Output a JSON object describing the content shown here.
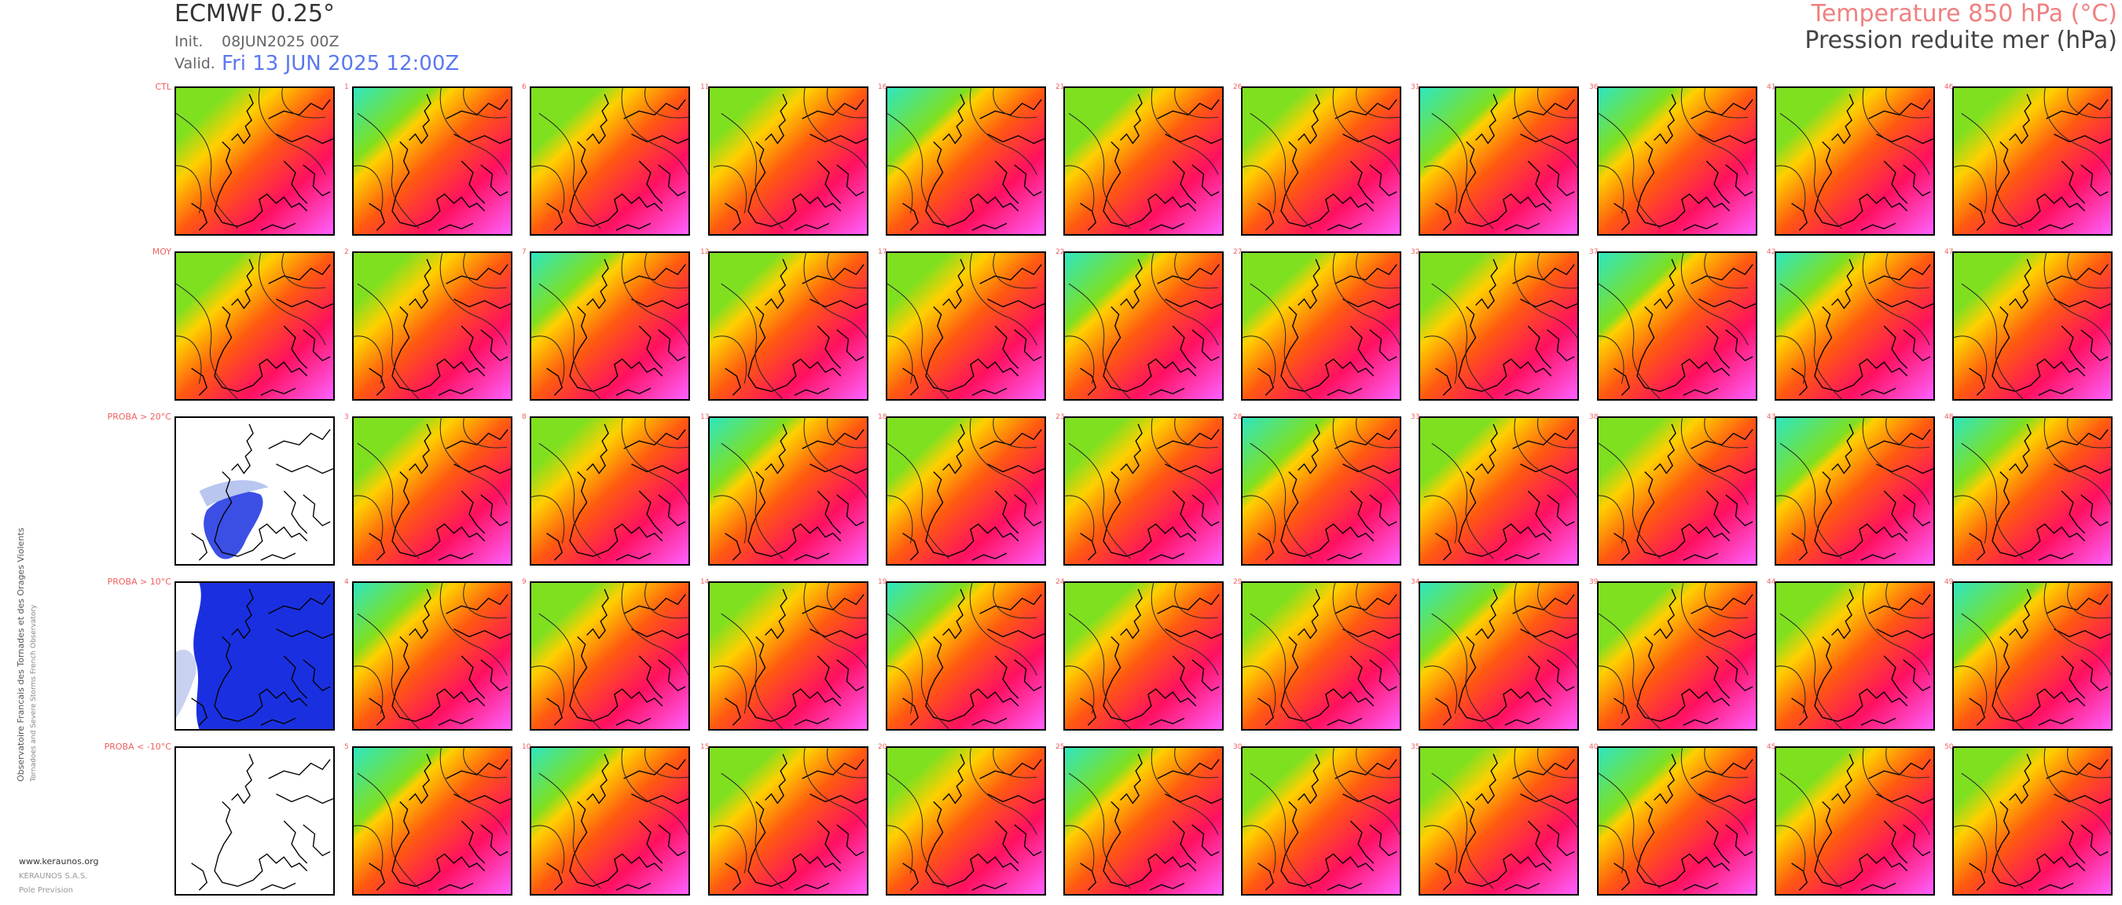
{
  "header": {
    "model": "ECMWF 0.25°",
    "init_label": "Init.",
    "init_value": "08JUN2025 00Z",
    "valid_label": "Valid.",
    "valid_value": "Fri 13 JUN 2025 12:00Z",
    "temp_title": "Temperature 850 hPa (°C)",
    "pressure_title": "Pression reduite mer (hPa)"
  },
  "rows": [
    {
      "label": "CTL",
      "kind": "member"
    },
    {
      "label": "MOY",
      "kind": "member"
    },
    {
      "label": "PROBA > 20°C",
      "kind": "proba20"
    },
    {
      "label": "PROBA > 10°C",
      "kind": "proba10"
    },
    {
      "label": "PROBA < -10°C",
      "kind": "probaneg"
    }
  ],
  "member_numbers": [
    [
      "",
      "1",
      "6",
      "11",
      "16",
      "21",
      "26",
      "31",
      "36",
      "41",
      "46"
    ],
    [
      "",
      "2",
      "7",
      "12",
      "17",
      "22",
      "27",
      "32",
      "37",
      "42",
      "47"
    ],
    [
      "",
      "3",
      "8",
      "13",
      "18",
      "23",
      "28",
      "33",
      "38",
      "43",
      "48"
    ],
    [
      "",
      "4",
      "9",
      "14",
      "19",
      "24",
      "29",
      "34",
      "39",
      "44",
      "49"
    ],
    [
      "",
      "5",
      "10",
      "15",
      "20",
      "25",
      "30",
      "35",
      "40",
      "45",
      "50"
    ]
  ],
  "colors": {
    "cold": "#2ee6c0",
    "mild": "#7fe020",
    "warm": "#ffd000",
    "hot": "#ff5a10",
    "vhot": "#ff1060",
    "extreme": "#ff60ff",
    "proba": "#1a30e0"
  },
  "footer": {
    "credit": "Observatoire Francais des Tornades et des Orages Violents",
    "credit_sub": "Tornadoes and Severe Storms French Observatory",
    "site": "www.keraunos.org",
    "company": "KERAUNOS S.A.S.",
    "dept": "Pole Prevision"
  }
}
